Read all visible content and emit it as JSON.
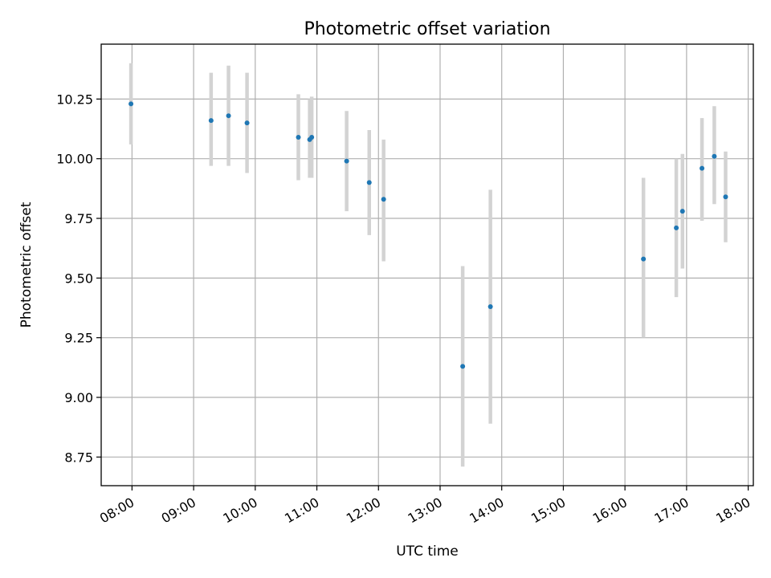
{
  "chart_data": {
    "type": "scatter",
    "title": "Photometric offset variation",
    "xlabel": "UTC time",
    "ylabel": "Photometric offset",
    "x_axis_format": "HH:MM",
    "xlim": [
      "07:30",
      "18:05"
    ],
    "ylim": [
      8.63,
      10.48
    ],
    "grid": true,
    "x_ticks": [
      "08:00",
      "09:00",
      "10:00",
      "11:00",
      "12:00",
      "13:00",
      "14:00",
      "15:00",
      "16:00",
      "17:00",
      "18:00"
    ],
    "y_ticks": [
      8.75,
      9.0,
      9.25,
      9.5,
      9.75,
      10.0,
      10.25
    ],
    "y_tick_labels": [
      "8.75",
      "9.00",
      "9.25",
      "9.50",
      "9.75",
      "10.00",
      "10.25"
    ],
    "marker_color": "#1f77b4",
    "errorbar_color": "#d3d3d3",
    "series": [
      {
        "points": [
          {
            "x": "07:59",
            "y": 10.23,
            "err_low": 10.06,
            "err_high": 10.4
          },
          {
            "x": "09:17",
            "y": 10.16,
            "err_low": 9.97,
            "err_high": 10.36
          },
          {
            "x": "09:34",
            "y": 10.18,
            "err_low": 9.97,
            "err_high": 10.39
          },
          {
            "x": "09:52",
            "y": 10.15,
            "err_low": 9.94,
            "err_high": 10.36
          },
          {
            "x": "10:42",
            "y": 10.09,
            "err_low": 9.91,
            "err_high": 10.27
          },
          {
            "x": "10:53",
            "y": 10.08,
            "err_low": 9.92,
            "err_high": 10.25
          },
          {
            "x": "10:55",
            "y": 10.09,
            "err_low": 9.92,
            "err_high": 10.26
          },
          {
            "x": "11:29",
            "y": 9.99,
            "err_low": 9.78,
            "err_high": 10.2
          },
          {
            "x": "11:51",
            "y": 9.9,
            "err_low": 9.68,
            "err_high": 10.12
          },
          {
            "x": "12:05",
            "y": 9.83,
            "err_low": 9.57,
            "err_high": 10.08
          },
          {
            "x": "13:22",
            "y": 9.13,
            "err_low": 8.71,
            "err_high": 9.55
          },
          {
            "x": "13:49",
            "y": 9.38,
            "err_low": 8.89,
            "err_high": 9.87
          },
          {
            "x": "16:18",
            "y": 9.58,
            "err_low": 9.25,
            "err_high": 9.92
          },
          {
            "x": "16:50",
            "y": 9.71,
            "err_low": 9.42,
            "err_high": 10.0
          },
          {
            "x": "16:56",
            "y": 9.78,
            "err_low": 9.54,
            "err_high": 10.02
          },
          {
            "x": "17:15",
            "y": 9.96,
            "err_low": 9.74,
            "err_high": 10.17
          },
          {
            "x": "17:27",
            "y": 10.01,
            "err_low": 9.81,
            "err_high": 10.22
          },
          {
            "x": "17:38",
            "y": 9.84,
            "err_low": 9.65,
            "err_high": 10.03
          }
        ]
      }
    ]
  }
}
